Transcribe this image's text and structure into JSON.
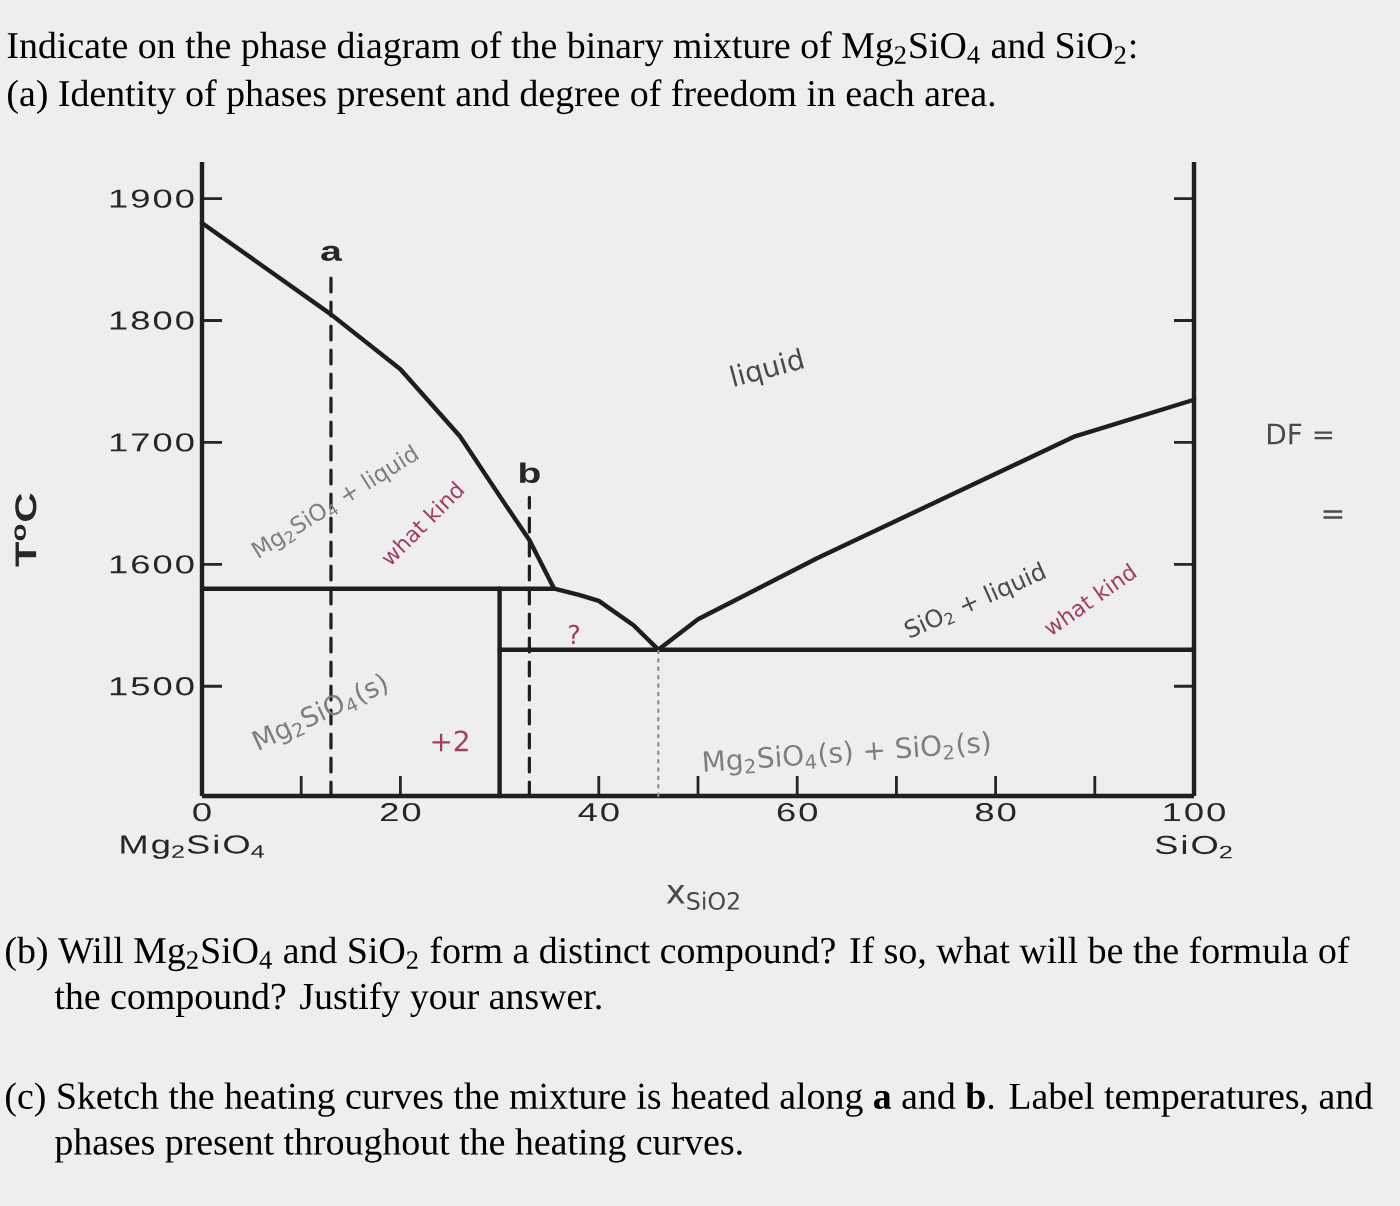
{
  "chart_data": {
    "type": "line",
    "title": "Indicate on the phase diagram of the binary mixture of Mg$_{2}$SiO$_{4}$ and SiO$_{2}$:",
    "subtitle": "(a) Identity of phases present and degree of freedom in each area.",
    "xlabel": "x$_{SiO2}$",
    "ylabel": "T$^{o}$C",
    "xlim": [
      0,
      100
    ],
    "ylim": [
      1410,
      1930
    ],
    "xticks": [
      0,
      {
        "value": 10,
        "label": null
      },
      20,
      {
        "value": 30,
        "label": null
      },
      40,
      {
        "value": 50,
        "label": null
      },
      60,
      {
        "value": 70,
        "label": null
      },
      80,
      {
        "value": 90,
        "label": null
      },
      100
    ],
    "yticks": [
      1500,
      1600,
      1700,
      1800,
      1900
    ],
    "series": [
      {
        "color": "#1e1e1e",
        "line_style": "solid",
        "x": [
          0,
          13,
          20,
          26,
          30.5,
          33,
          35.5,
          38,
          40,
          43.5,
          46
        ],
        "values": [
          1880,
          1805,
          1760,
          1705,
          1650,
          1620,
          1580,
          1575,
          1570,
          1550,
          1530
        ]
      },
      {
        "color": "#1e1e1e",
        "line_style": "solid",
        "x": [
          46,
          50,
          62,
          75,
          88,
          100
        ],
        "values": [
          1530,
          1555,
          1605,
          1655,
          1705,
          1735
        ]
      },
      {
        "color": "#1e1e1e",
        "line_style": "solid",
        "x": [
          0,
          35.5
        ],
        "values": [
          1580,
          1580
        ]
      },
      {
        "color": "#1e1e1e",
        "line_style": "solid",
        "x": [
          30,
          30
        ],
        "values": [
          1410,
          1580
        ]
      },
      {
        "color": "#1e1e1e",
        "line_style": "solid",
        "x": [
          30,
          100
        ],
        "values": [
          1530,
          1530
        ]
      },
      {
        "color": "#1e1e1e",
        "line_style": "dashed",
        "x": [
          13,
          13
        ],
        "values": [
          1410,
          1835
        ]
      },
      {
        "color": "#1e1e1e",
        "line_style": "dashed",
        "x": [
          33,
          33
        ],
        "values": [
          1410,
          1655
        ]
      },
      {
        "color": "#8c8c8c",
        "line_style": "dotted",
        "x": [
          46,
          46
        ],
        "values": [
          1410,
          1530
        ]
      }
    ],
    "annotations": [
      "Mg$_{2}$SiO$_{4}$",
      "SiO$_{2}$",
      "a",
      "b",
      "liquid",
      "Mg$_{2}$SiO$_{4}$ + liquid",
      "what kind",
      "?",
      "Mg$_{2}$SiO$_{4}$(s)",
      "+2",
      "SiO$_{2}$ + liquid",
      "what kind",
      "Mg$_{2}$SiO$_{4}$(s) + SiO$_{2}$(s)",
      "DF =",
      "=",
      "(b) Will Mg$_{2}$SiO$_{4}$ and SiO$_{2}$ form a distinct compound? If so, what will be the formula of the compound? Justify your answer.",
      "(c) Sketch the heating curves the mixture is heated along **a** and **b**. Label temperatures, and phases present throughout the heating curves."
    ]
  }
}
